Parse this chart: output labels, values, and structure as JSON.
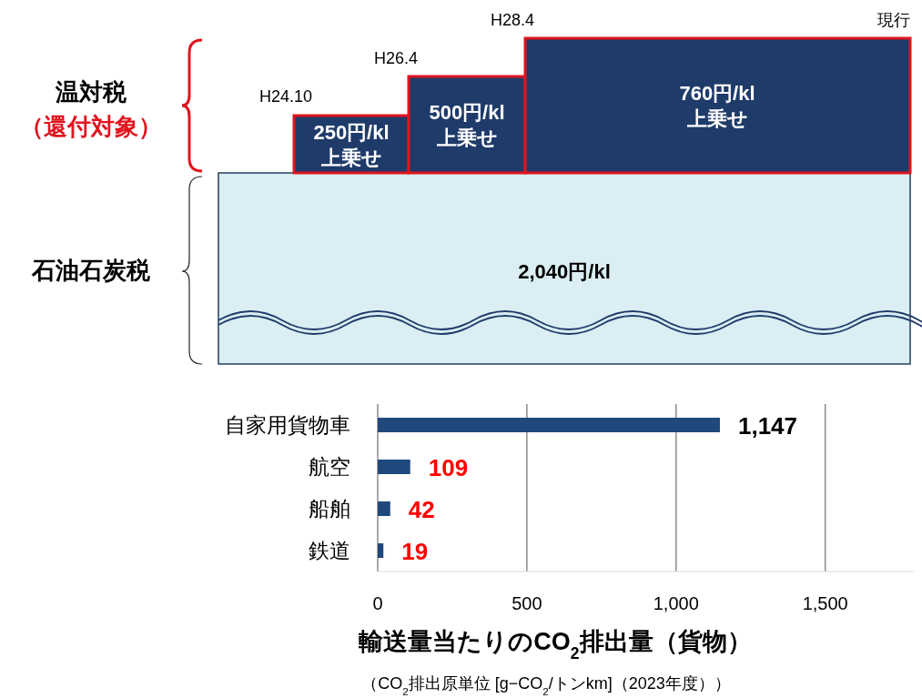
{
  "chart_data": [
    {
      "type": "other",
      "annotations": [
        "温対税",
        "（還付対象）",
        "石油石炭税",
        "H24.10",
        "H26.4",
        "H28.4",
        "現行",
        "250円/kl 上乗せ",
        "500円/kl 上乗せ",
        "760円/kl 上乗せ",
        "2,040円/kl"
      ]
    },
    {
      "type": "bar",
      "orientation": "horizontal",
      "categories": [
        "自家用貨物車",
        "航空",
        "船舶",
        "鉄道"
      ],
      "values": [
        1147,
        109,
        42,
        19
      ],
      "color": "#1f497d",
      "xlim": [
        0,
        1800
      ],
      "xticks": [
        0,
        500,
        {
          "value": 1000,
          "label": "1,000"
        },
        {
          "value": 1500,
          "label": "1,500"
        }
      ],
      "grid": "x",
      "value_labels": [
        "1,147",
        "109",
        "42",
        "19"
      ],
      "xlabel": "輸送量当たりのCO$_{2}$排出量（貨物）",
      "annotations": [
        "（CO$_{2}$排出原単位 [g−CO$_{2}$/トンkm]（2023年度））"
      ]
    }
  ]
}
